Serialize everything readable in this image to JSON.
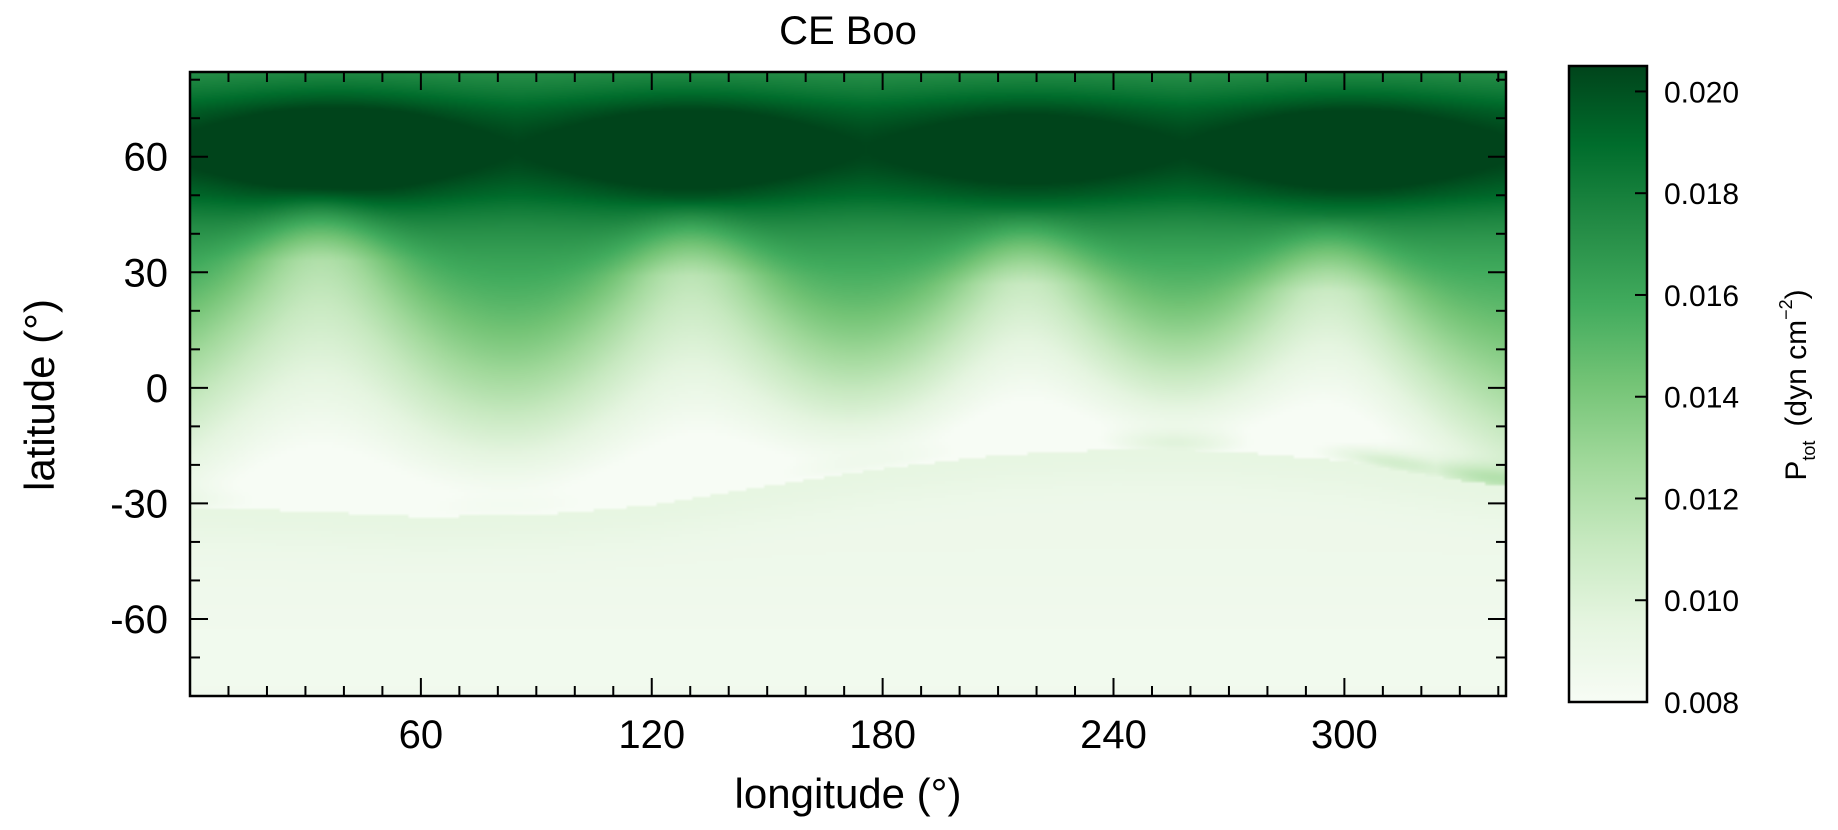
{
  "chart_data": {
    "type": "heatmap",
    "title": "CE Boo",
    "xlabel": "longitude (°)",
    "ylabel": "latitude (°)",
    "xlim": [
      0,
      342
    ],
    "ylim": [
      -80,
      82
    ],
    "x_ticks": [
      60,
      120,
      180,
      240,
      300
    ],
    "x_tick_labels": [
      "60",
      "120",
      "180",
      "240",
      "300"
    ],
    "y_ticks": [
      -60,
      -30,
      0,
      30,
      60
    ],
    "y_tick_labels": [
      "-60",
      "-30",
      "0",
      "30",
      "60"
    ],
    "colorbar": {
      "label_main": "P",
      "label_sub": "tot",
      "label_unit": "(dyn cm",
      "label_sup": "−2",
      "label_close": ")",
      "range": [
        0.008,
        0.0205
      ],
      "ticks": [
        0.008,
        0.01,
        0.012,
        0.014,
        0.016,
        0.018,
        0.02
      ],
      "tick_labels": [
        "0.008",
        "0.010",
        "0.012",
        "0.014",
        "0.016",
        "0.018",
        "0.020"
      ]
    },
    "colormap": [
      "#f7fcf5",
      "#e5f5e0",
      "#c7e9c0",
      "#a1d99b",
      "#74c476",
      "#41ab5d",
      "#238b45",
      "#006d2c",
      "#00441b"
    ],
    "features": {
      "polar_band": {
        "lat_center": 62,
        "peaks": [
          {
            "lon": 38,
            "value": 0.0203
          },
          {
            "lon": 130,
            "value": 0.0199
          },
          {
            "lon": 218,
            "value": 0.0193
          },
          {
            "lon": 302,
            "value": 0.0199
          }
        ]
      },
      "plumes": [
        {
          "lon": 34,
          "top_lat": 48,
          "value": 0.0118
        },
        {
          "lon": 130,
          "top_lat": 44,
          "value": 0.0119
        },
        {
          "lon": 217,
          "top_lat": 42,
          "value": 0.0125
        },
        {
          "lon": 296,
          "top_lat": 40,
          "value": 0.012
        }
      ],
      "boundary": {
        "lon": [
          0,
          30,
          60,
          90,
          120,
          150,
          180,
          210,
          240,
          270,
          300,
          330,
          342
        ],
        "lat": [
          -31,
          -32,
          -33.5,
          -33,
          -30.5,
          -25.5,
          -21,
          -17.5,
          -16,
          -16.5,
          -19,
          -24,
          -25.5
        ]
      },
      "ridge_peaks": [
        {
          "lon": 256,
          "value": 0.0138
        },
        {
          "lon": 310,
          "value": 0.015
        },
        {
          "lon": 335,
          "value": 0.0145
        }
      ],
      "south_value": 0.0088
    }
  }
}
